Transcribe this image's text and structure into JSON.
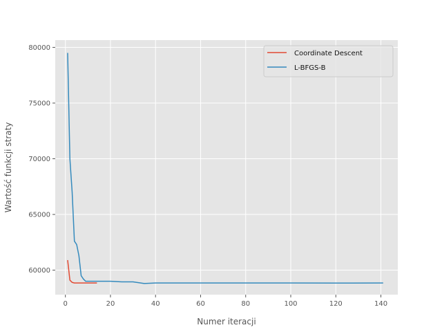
{
  "chart_data": {
    "type": "line",
    "title": "",
    "xlabel": "Numer iteracji",
    "ylabel": "Wartość funkcji straty",
    "xlim": [
      -4.5,
      147.5
    ],
    "ylim": [
      57800,
      80650
    ],
    "xticks": [
      0,
      20,
      40,
      60,
      80,
      100,
      120,
      140
    ],
    "yticks": [
      60000,
      65000,
      70000,
      75000,
      80000
    ],
    "grid": true,
    "legend_position": "top-right",
    "series": [
      {
        "name": "Coordinate Descent",
        "color": "#E24A33",
        "x": [
          1,
          2,
          3,
          4,
          5,
          6,
          7,
          8,
          9,
          10,
          11,
          12,
          13,
          14
        ],
        "y": [
          60900,
          59100,
          58900,
          58850,
          58850,
          58850,
          58850,
          58850,
          58850,
          58850,
          58850,
          58850,
          58850,
          58850
        ]
      },
      {
        "name": "L-BFGS-B",
        "color": "#348ABD",
        "x": [
          1,
          2,
          3,
          4,
          5,
          6,
          7,
          8,
          9,
          10,
          12,
          15,
          20,
          25,
          30,
          35,
          40,
          50,
          60,
          80,
          100,
          120,
          141
        ],
        "y": [
          79500,
          70000,
          67000,
          62600,
          62300,
          61300,
          59500,
          59200,
          59000,
          59000,
          59000,
          59000,
          59000,
          58950,
          58950,
          58800,
          58850,
          58850,
          58850,
          58850,
          58850,
          58840,
          58850
        ]
      }
    ]
  }
}
